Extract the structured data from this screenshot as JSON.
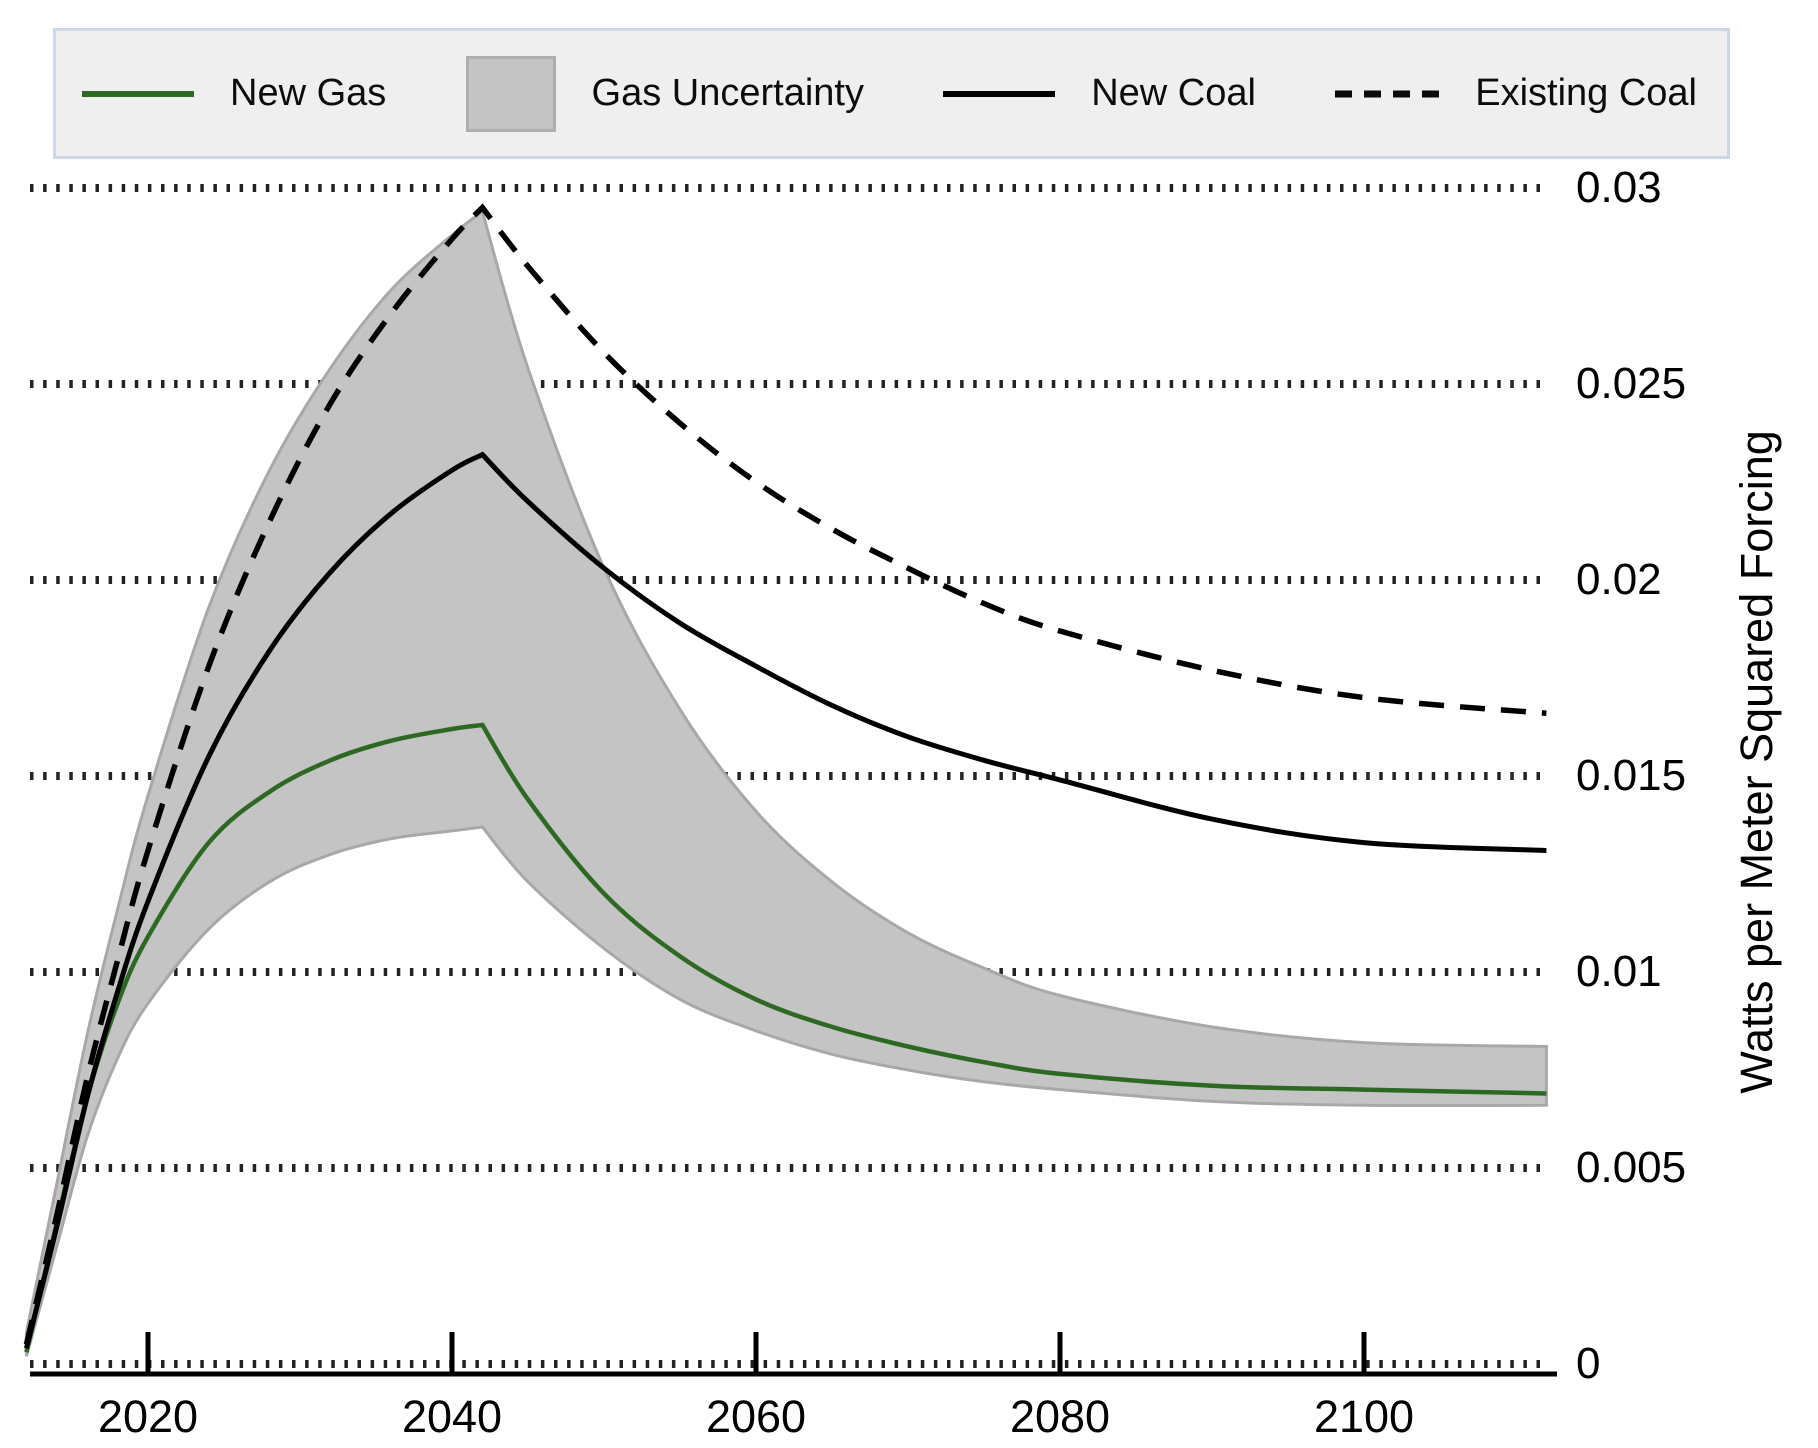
{
  "figure": {
    "background": "#ffffff"
  },
  "legend": {
    "background": "#efefef",
    "border_color": "#ccd8e3",
    "items": [
      {
        "label": "New Gas",
        "swatch": "line",
        "color": "#2d6923"
      },
      {
        "label": "Gas Uncertainty",
        "swatch": "rect",
        "color": "#c4c4c4"
      },
      {
        "label": "New Coal",
        "swatch": "line",
        "color": "#000000"
      },
      {
        "label": "Existing Coal",
        "swatch": "dashed-line",
        "color": "#000000"
      }
    ]
  },
  "chart_data": {
    "type": "line",
    "title": "",
    "xlabel": "",
    "ylabel": "Watts per Meter Squared Forcing",
    "x_ticks": [
      2020,
      2040,
      2060,
      2080,
      2100
    ],
    "y_ticks": [
      0,
      0.005,
      0.01,
      0.015,
      0.02,
      0.025,
      0.03
    ],
    "y_tick_labels": [
      "0",
      "0.005",
      "0.01",
      "0.015",
      "0.02",
      "0.025",
      "0.03"
    ],
    "xlim": [
      2012,
      2113
    ],
    "ylim": [
      0,
      0.031
    ],
    "grid": "horizontal-dotted",
    "legend_position": "top",
    "peak_year": 2042,
    "x": [
      2012,
      2014,
      2016,
      2018,
      2020,
      2024,
      2028,
      2032,
      2036,
      2040,
      2042,
      2045,
      2050,
      2055,
      2060,
      2065,
      2070,
      2075,
      2080,
      2090,
      2100,
      2112
    ],
    "series": [
      {
        "name": "New Gas",
        "style": "solid",
        "color": "#2d6923",
        "values": [
          0.0003,
          0.0036,
          0.0068,
          0.0092,
          0.0109,
          0.0133,
          0.0146,
          0.0154,
          0.0159,
          0.0162,
          0.0163,
          0.0144,
          0.012,
          0.0104,
          0.0093,
          0.0086,
          0.0081,
          0.0077,
          0.0074,
          0.0071,
          0.007,
          0.0069
        ]
      },
      {
        "name": "New Coal",
        "style": "solid",
        "color": "#000000",
        "values": [
          0.0004,
          0.0035,
          0.0068,
          0.0095,
          0.0118,
          0.0155,
          0.0182,
          0.0202,
          0.0217,
          0.0228,
          0.0232,
          0.022,
          0.0203,
          0.0189,
          0.0178,
          0.0168,
          0.016,
          0.0154,
          0.0149,
          0.0139,
          0.0133,
          0.0131
        ]
      },
      {
        "name": "Existing Coal",
        "style": "dashed",
        "color": "#000000",
        "values": [
          0.0005,
          0.0038,
          0.0073,
          0.0103,
          0.0131,
          0.0178,
          0.0215,
          0.0245,
          0.0268,
          0.0287,
          0.0295,
          0.028,
          0.0258,
          0.024,
          0.0225,
          0.0213,
          0.0203,
          0.0194,
          0.0187,
          0.0177,
          0.017,
          0.0166
        ]
      },
      {
        "name": "Gas Uncertainty",
        "style": "band",
        "fill": "#c4c4c4",
        "edge": "#a8a8a8",
        "upper": [
          0.0008,
          0.0046,
          0.0084,
          0.0116,
          0.0145,
          0.0193,
          0.0228,
          0.0254,
          0.0274,
          0.0288,
          0.0294,
          0.0254,
          0.0203,
          0.0167,
          0.0141,
          0.0123,
          0.011,
          0.0101,
          0.0094,
          0.0086,
          0.0082,
          0.0081
        ],
        "lower": [
          0.0002,
          0.003,
          0.0058,
          0.0078,
          0.0092,
          0.0111,
          0.0123,
          0.013,
          0.0134,
          0.0136,
          0.0137,
          0.0123,
          0.0106,
          0.0093,
          0.0085,
          0.0079,
          0.0075,
          0.0072,
          0.007,
          0.0067,
          0.0066,
          0.0066
        ]
      }
    ],
    "axis": {
      "line_color": "#000000",
      "grid_color": "#222222"
    }
  }
}
